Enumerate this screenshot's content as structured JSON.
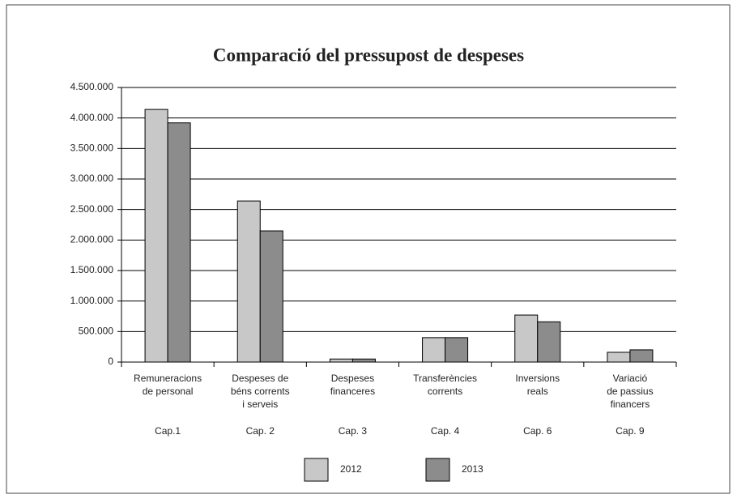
{
  "chart_data": {
    "type": "bar",
    "title": "Comparació del pressupost de despeses",
    "categories": [
      [
        "Remuneracions",
        "de personal"
      ],
      [
        "Despeses de",
        "béns corrents",
        "i serveis"
      ],
      [
        "Despeses",
        "financeres"
      ],
      [
        "Transferències",
        "corrents"
      ],
      [
        "Inversions",
        "reals"
      ],
      [
        "Variació",
        "de passius",
        "financers"
      ]
    ],
    "chapters": [
      "Cap.1",
      "Cap. 2",
      "Cap. 3",
      "Cap. 4",
      "Cap. 6",
      "Cap. 9"
    ],
    "series": [
      {
        "name": "2012",
        "color": "#c8c8c8",
        "values": [
          4140000,
          2640000,
          50000,
          400000,
          770000,
          160000
        ]
      },
      {
        "name": "2013",
        "color": "#8c8c8c",
        "values": [
          3920000,
          2150000,
          50000,
          400000,
          660000,
          200000
        ]
      }
    ],
    "ylim": [
      0,
      4500000
    ],
    "yticks": [
      0,
      {
        "value": 500000,
        "label": "500.000"
      },
      {
        "value": 1000000,
        "label": "1.000.000"
      },
      {
        "value": 1500000,
        "label": "1.500.000"
      },
      {
        "value": 2000000,
        "label": "2.000.000"
      },
      {
        "value": 2500000,
        "label": "2.500.000"
      },
      {
        "value": 3000000,
        "label": "3.000.000"
      },
      {
        "value": 3500000,
        "label": "3.500.000"
      },
      {
        "value": 4000000,
        "label": "4.000.000"
      },
      {
        "value": 4500000,
        "label": "4.500.000"
      }
    ],
    "grid": true,
    "legend": "bottom"
  }
}
